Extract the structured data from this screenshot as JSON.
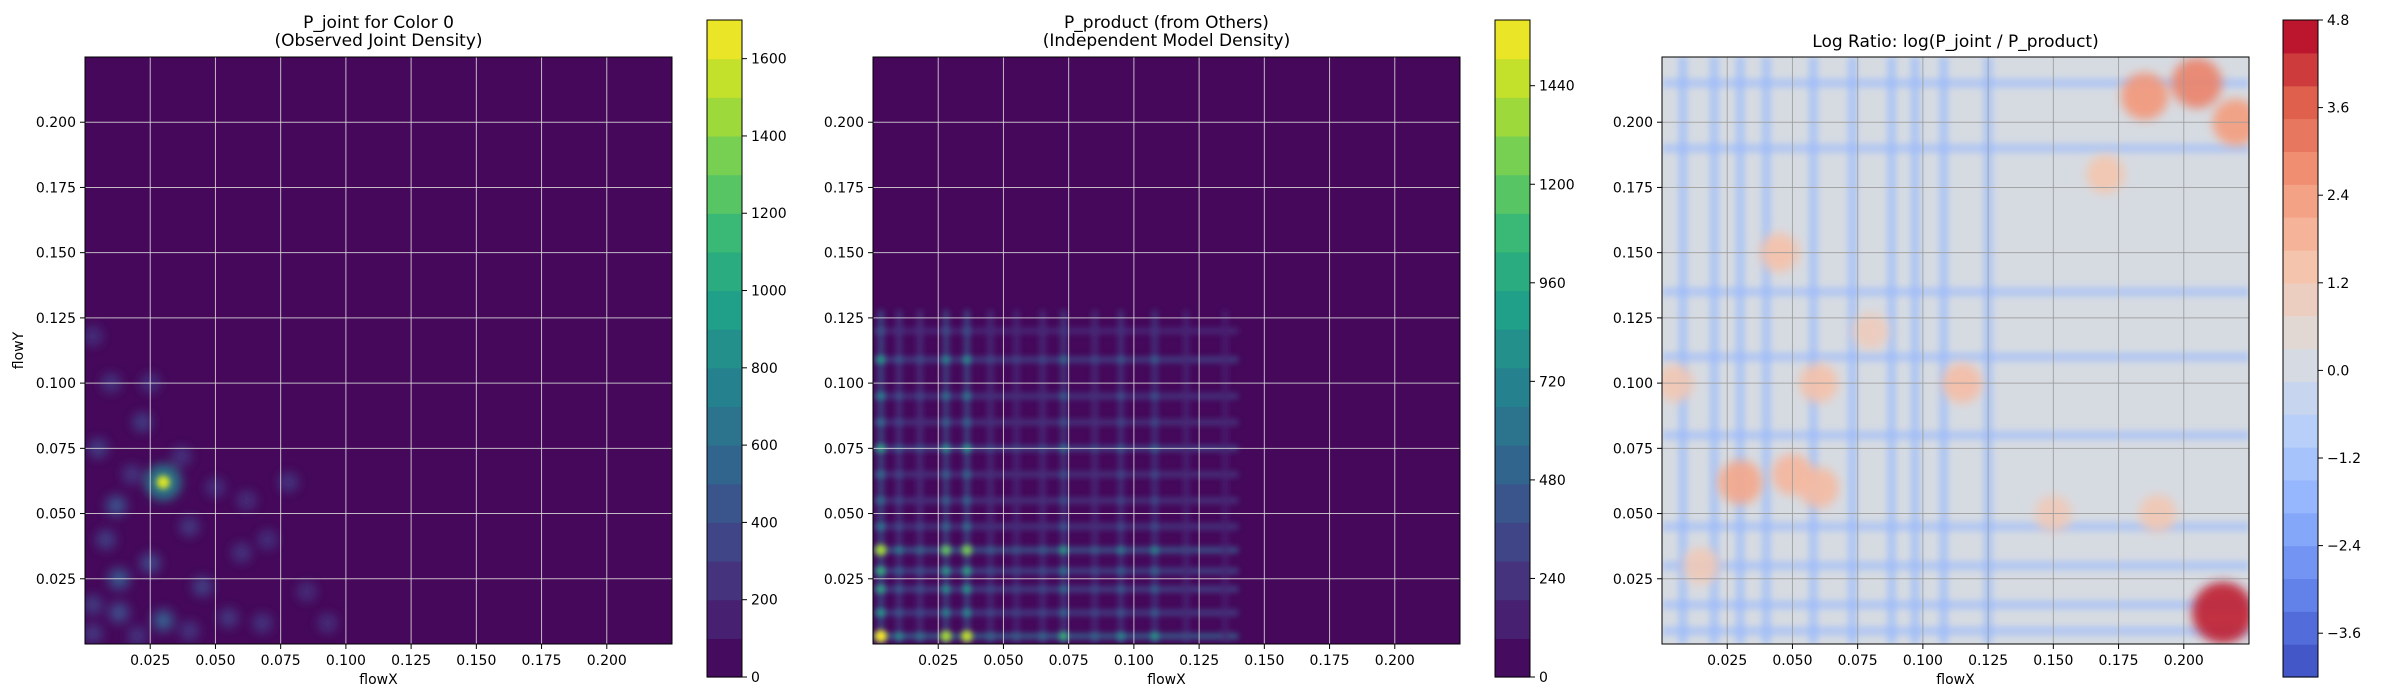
{
  "chart_data": [
    {
      "type": "heatmap",
      "plot_kind": "filled-contour",
      "title": "P_joint for Color 0\n(Observed Joint Density)",
      "xlabel": "flowX",
      "ylabel": "flowY",
      "xlim": [
        0.0,
        0.225
      ],
      "ylim": [
        0.0,
        0.225
      ],
      "xticks": [
        "0.025",
        "0.050",
        "0.075",
        "0.100",
        "0.125",
        "0.150",
        "0.175",
        "0.200"
      ],
      "yticks": [
        "0.025",
        "0.050",
        "0.075",
        "0.100",
        "0.125",
        "0.150",
        "0.175",
        "0.200"
      ],
      "grid": true,
      "colormap": "viridis",
      "colorbar": {
        "min": 0,
        "max": 1700,
        "ticks": [
          "0",
          "200",
          "400",
          "600",
          "800",
          "1000",
          "1200",
          "1400",
          "1600"
        ]
      },
      "hotspots": [
        {
          "x": 0.03,
          "y": 0.062,
          "value": 1600
        },
        {
          "x": 0.03,
          "y": 0.009,
          "value": 500
        },
        {
          "x": 0.013,
          "y": 0.025,
          "value": 450
        },
        {
          "x": 0.012,
          "y": 0.053,
          "value": 400
        },
        {
          "x": 0.013,
          "y": 0.012,
          "value": 350
        },
        {
          "x": 0.025,
          "y": 0.031,
          "value": 320
        },
        {
          "x": 0.045,
          "y": 0.022,
          "value": 260
        },
        {
          "x": 0.005,
          "y": 0.075,
          "value": 240
        },
        {
          "x": 0.022,
          "y": 0.085,
          "value": 220
        },
        {
          "x": 0.008,
          "y": 0.04,
          "value": 240
        },
        {
          "x": 0.04,
          "y": 0.045,
          "value": 200
        },
        {
          "x": 0.078,
          "y": 0.062,
          "value": 180
        },
        {
          "x": 0.055,
          "y": 0.01,
          "value": 200
        },
        {
          "x": 0.068,
          "y": 0.008,
          "value": 180
        },
        {
          "x": 0.01,
          "y": 0.1,
          "value": 160
        },
        {
          "x": 0.003,
          "y": 0.118,
          "value": 140
        },
        {
          "x": 0.025,
          "y": 0.1,
          "value": 140
        },
        {
          "x": 0.037,
          "y": 0.072,
          "value": 150
        },
        {
          "x": 0.06,
          "y": 0.035,
          "value": 160
        },
        {
          "x": 0.07,
          "y": 0.04,
          "value": 140
        },
        {
          "x": 0.093,
          "y": 0.008,
          "value": 130
        },
        {
          "x": 0.085,
          "y": 0.02,
          "value": 120
        },
        {
          "x": 0.05,
          "y": 0.06,
          "value": 140
        },
        {
          "x": 0.062,
          "y": 0.055,
          "value": 130
        },
        {
          "x": 0.018,
          "y": 0.065,
          "value": 180
        },
        {
          "x": 0.003,
          "y": 0.015,
          "value": 220
        },
        {
          "x": 0.04,
          "y": 0.005,
          "value": 180
        },
        {
          "x": 0.02,
          "y": 0.003,
          "value": 160
        },
        {
          "x": 0.003,
          "y": 0.004,
          "value": 200
        }
      ]
    },
    {
      "type": "heatmap",
      "plot_kind": "filled-contour",
      "title": "P_product (from Others)\n(Independent Model Density)",
      "xlabel": "flowX",
      "ylabel": "",
      "xlim": [
        0.0,
        0.225
      ],
      "ylim": [
        0.0,
        0.225
      ],
      "xticks": [
        "0.025",
        "0.050",
        "0.075",
        "0.100",
        "0.125",
        "0.150",
        "0.175",
        "0.200"
      ],
      "yticks": [
        "0.025",
        "0.050",
        "0.075",
        "0.100",
        "0.125",
        "0.150",
        "0.175",
        "0.200"
      ],
      "grid": true,
      "colormap": "viridis",
      "colorbar": {
        "min": 0,
        "max": 1600,
        "ticks": [
          "0",
          "240",
          "480",
          "720",
          "960",
          "1200",
          "1440"
        ]
      },
      "x_marginal_peaks": [
        {
          "x": 0.003,
          "weight": 1.0
        },
        {
          "x": 0.01,
          "weight": 0.45
        },
        {
          "x": 0.018,
          "weight": 0.35
        },
        {
          "x": 0.028,
          "weight": 0.85
        },
        {
          "x": 0.036,
          "weight": 0.9
        },
        {
          "x": 0.045,
          "weight": 0.3
        },
        {
          "x": 0.055,
          "weight": 0.25
        },
        {
          "x": 0.065,
          "weight": 0.3
        },
        {
          "x": 0.073,
          "weight": 0.6
        },
        {
          "x": 0.085,
          "weight": 0.3
        },
        {
          "x": 0.095,
          "weight": 0.45
        },
        {
          "x": 0.108,
          "weight": 0.5
        },
        {
          "x": 0.12,
          "weight": 0.15
        },
        {
          "x": 0.135,
          "weight": 0.08
        }
      ],
      "y_marginal_peaks": [
        {
          "y": 0.003,
          "weight": 1.0
        },
        {
          "y": 0.012,
          "weight": 0.5
        },
        {
          "y": 0.021,
          "weight": 0.55
        },
        {
          "y": 0.028,
          "weight": 0.6
        },
        {
          "y": 0.036,
          "weight": 0.85
        },
        {
          "y": 0.045,
          "weight": 0.35
        },
        {
          "y": 0.055,
          "weight": 0.3
        },
        {
          "y": 0.065,
          "weight": 0.3
        },
        {
          "y": 0.075,
          "weight": 0.55
        },
        {
          "y": 0.085,
          "weight": 0.3
        },
        {
          "y": 0.095,
          "weight": 0.4
        },
        {
          "y": 0.109,
          "weight": 0.5
        },
        {
          "y": 0.12,
          "weight": 0.15
        }
      ]
    },
    {
      "type": "heatmap",
      "plot_kind": "filled-contour",
      "title": "Log Ratio: log(P_joint / P_product)",
      "xlabel": "flowX",
      "ylabel": "",
      "xlim": [
        0.0,
        0.225
      ],
      "ylim": [
        0.0,
        0.225
      ],
      "xticks": [
        "0.025",
        "0.050",
        "0.075",
        "0.100",
        "0.125",
        "0.150",
        "0.175",
        "0.200"
      ],
      "yticks": [
        "0.025",
        "0.050",
        "0.075",
        "0.100",
        "0.125",
        "0.150",
        "0.175",
        "0.200"
      ],
      "grid": true,
      "colormap": "coolwarm",
      "colorbar": {
        "min": -4.2,
        "max": 4.8,
        "ticks": [
          "−3.6",
          "−2.4",
          "−1.2",
          "0.0",
          "1.2",
          "2.4",
          "3.6",
          "4.8"
        ]
      },
      "blue_columns": [
        0.008,
        0.02,
        0.03,
        0.04,
        0.058,
        0.073,
        0.088,
        0.097,
        0.108,
        0.125
      ],
      "blue_rows": [
        0.005,
        0.015,
        0.03,
        0.045,
        0.08,
        0.11,
        0.135,
        0.19,
        0.215
      ],
      "red_patches": [
        {
          "x": 0.215,
          "y": 0.012,
          "value": 4.5
        },
        {
          "x": 0.205,
          "y": 0.215,
          "value": 3.0
        },
        {
          "x": 0.185,
          "y": 0.21,
          "value": 2.6
        },
        {
          "x": 0.22,
          "y": 0.2,
          "value": 2.5
        },
        {
          "x": 0.03,
          "y": 0.062,
          "value": 2.2
        },
        {
          "x": 0.05,
          "y": 0.065,
          "value": 1.8
        },
        {
          "x": 0.06,
          "y": 0.06,
          "value": 1.7
        },
        {
          "x": 0.045,
          "y": 0.15,
          "value": 1.5
        },
        {
          "x": 0.115,
          "y": 0.1,
          "value": 1.6
        },
        {
          "x": 0.06,
          "y": 0.1,
          "value": 1.5
        },
        {
          "x": 0.005,
          "y": 0.1,
          "value": 1.3
        },
        {
          "x": 0.15,
          "y": 0.05,
          "value": 1.2
        },
        {
          "x": 0.19,
          "y": 0.05,
          "value": 1.3
        },
        {
          "x": 0.015,
          "y": 0.03,
          "value": 1.2
        },
        {
          "x": 0.08,
          "y": 0.12,
          "value": 1.1
        },
        {
          "x": 0.17,
          "y": 0.18,
          "value": 1.4
        }
      ]
    }
  ]
}
